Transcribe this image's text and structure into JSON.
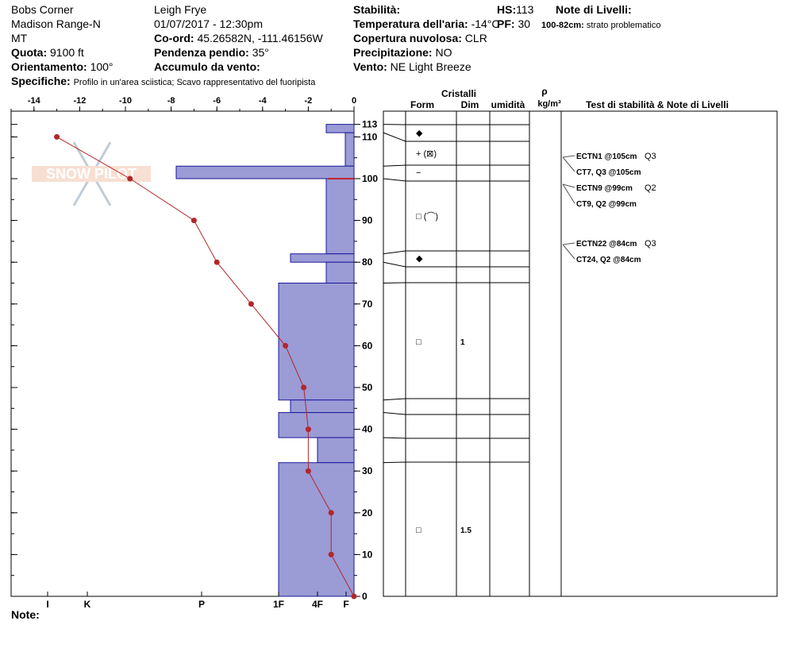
{
  "header": {
    "location": "Bobs Corner",
    "range": "Madison Range-N",
    "state": "MT",
    "elevation_label": "Quota:",
    "elevation_value": "9100 ft",
    "aspect_label": "Orientamento:",
    "aspect_value": "100°",
    "specifics_label": "Specifiche:",
    "specifics_value": "Profilo in un'area sciistica; Scavo rappresentativo del fuoripista",
    "observer": "Leigh Frye",
    "datetime": "01/07/2017 - 12:30pm",
    "coord_label": "Co-ord:",
    "coord_value": "45.26582N, -111.46156W",
    "slope_label": "Pendenza pendio:",
    "slope_value": "35°",
    "wind_loading_label": "Accumulo da vento:",
    "stability_label": "Stabilità:",
    "air_temp_label": "Temperatura dell'aria:",
    "air_temp_value": "-14°C",
    "cloud_label": "Copertura nuvolosa:",
    "cloud_value": "CLR",
    "precip_label": "Precipitazione:",
    "precip_value": "NO",
    "wind_label": "Vento:",
    "wind_value": "NE Light Breeze",
    "hs_label": "HS:",
    "hs_value": "113",
    "pf_label": "PF:",
    "pf_value": "30",
    "layer_notes_label": "Note di Livelli:",
    "layer_note_range": "100-82cm:",
    "layer_note_text": "strato problematico"
  },
  "columns": {
    "crystals": "Cristalli",
    "form": "Form",
    "size": "Dim",
    "moisture": "umidità",
    "rho": "ρ",
    "density_unit": "kg/m³",
    "tests": "Test di stabilità & Note di Livelli"
  },
  "notes_label": "Note:",
  "watermark": "SNOW PILOT",
  "chart_data": {
    "type": "snow-profile",
    "depth_axis": {
      "range": [
        0,
        113
      ],
      "ticks": [
        0,
        10,
        20,
        30,
        40,
        50,
        60,
        70,
        80,
        90,
        100,
        110,
        113
      ]
    },
    "temperature_axis": {
      "range": [
        -15,
        0
      ],
      "ticks": [
        -14,
        -12,
        -10,
        -8,
        -6,
        -4,
        -2,
        0
      ]
    },
    "hardness_labels": [
      {
        "label": "I",
        "rank": 1
      },
      {
        "label": "K",
        "rank": 2
      },
      {
        "label": "P",
        "rank": 3
      },
      {
        "label": "1F",
        "rank": 4
      },
      {
        "label": "4F",
        "rank": 5
      },
      {
        "label": "F",
        "rank": 6
      }
    ],
    "temperature_profile": [
      {
        "depth": 110,
        "temp": -13
      },
      {
        "depth": 100,
        "temp": -9.8
      },
      {
        "depth": 90,
        "temp": -7
      },
      {
        "depth": 80,
        "temp": -6
      },
      {
        "depth": 70,
        "temp": -4.5
      },
      {
        "depth": 60,
        "temp": -3
      },
      {
        "depth": 50,
        "temp": -2.2
      },
      {
        "depth": 40,
        "temp": -2
      },
      {
        "depth": 30,
        "temp": -2
      },
      {
        "depth": 20,
        "temp": -1
      },
      {
        "depth": 10,
        "temp": -1
      },
      {
        "depth": 0,
        "temp": 0
      }
    ],
    "hardness_layers": [
      {
        "top": 113,
        "bottom": 111,
        "hardness": "4F+"
      },
      {
        "top": 111,
        "bottom": 103,
        "hardness": "F+"
      },
      {
        "top": 103,
        "bottom": 100,
        "hardness": "P-"
      },
      {
        "top": 100,
        "bottom": 82,
        "hardness": "4F+"
      },
      {
        "top": 82,
        "bottom": 80,
        "hardness": "1F-"
      },
      {
        "top": 80,
        "bottom": 75,
        "hardness": "4F+"
      },
      {
        "top": 75,
        "bottom": 47,
        "hardness": "1F"
      },
      {
        "top": 47,
        "bottom": 44,
        "hardness": "1F-"
      },
      {
        "top": 44,
        "bottom": 38,
        "hardness": "1F"
      },
      {
        "top": 38,
        "bottom": 32,
        "hardness": "4F"
      },
      {
        "top": 32,
        "bottom": 0,
        "hardness": "1F"
      }
    ],
    "layer_boundaries": [
      113,
      111,
      103,
      100,
      82,
      80,
      75,
      47,
      44,
      38,
      32,
      0
    ],
    "crystal_symbols": [
      {
        "depth": 110,
        "symbol": "◆",
        "size": ""
      },
      {
        "depth": 105,
        "symbol": "+ (⊠)",
        "size": ""
      },
      {
        "depth": 101,
        "symbol": "−",
        "size": ""
      },
      {
        "depth": 91,
        "symbol": "□ (⌒)",
        "size": ""
      },
      {
        "depth": 81,
        "symbol": "◆",
        "size": ""
      },
      {
        "depth": 61,
        "symbol": "□",
        "size": "1"
      },
      {
        "depth": 16,
        "symbol": "□",
        "size": "1.5"
      }
    ],
    "stability_tests": [
      {
        "depth": 105,
        "label": "ECTN1 @105cm",
        "quality": "Q3",
        "bold_quality": false
      },
      {
        "depth": 105,
        "label": "CT7, Q3 @105cm",
        "quality": "",
        "sub": true
      },
      {
        "depth": 99,
        "label": "ECTN9 @99cm",
        "quality": "Q2",
        "bold_quality": false
      },
      {
        "depth": 99,
        "label": "CT9, Q2 @99cm",
        "quality": "",
        "sub": true
      },
      {
        "depth": 84,
        "label": "ECTN22 @84cm",
        "quality": "Q3",
        "bold_quality": false
      },
      {
        "depth": 84,
        "label": "CT24, Q2 @84cm",
        "quality": "",
        "sub": true
      }
    ]
  }
}
